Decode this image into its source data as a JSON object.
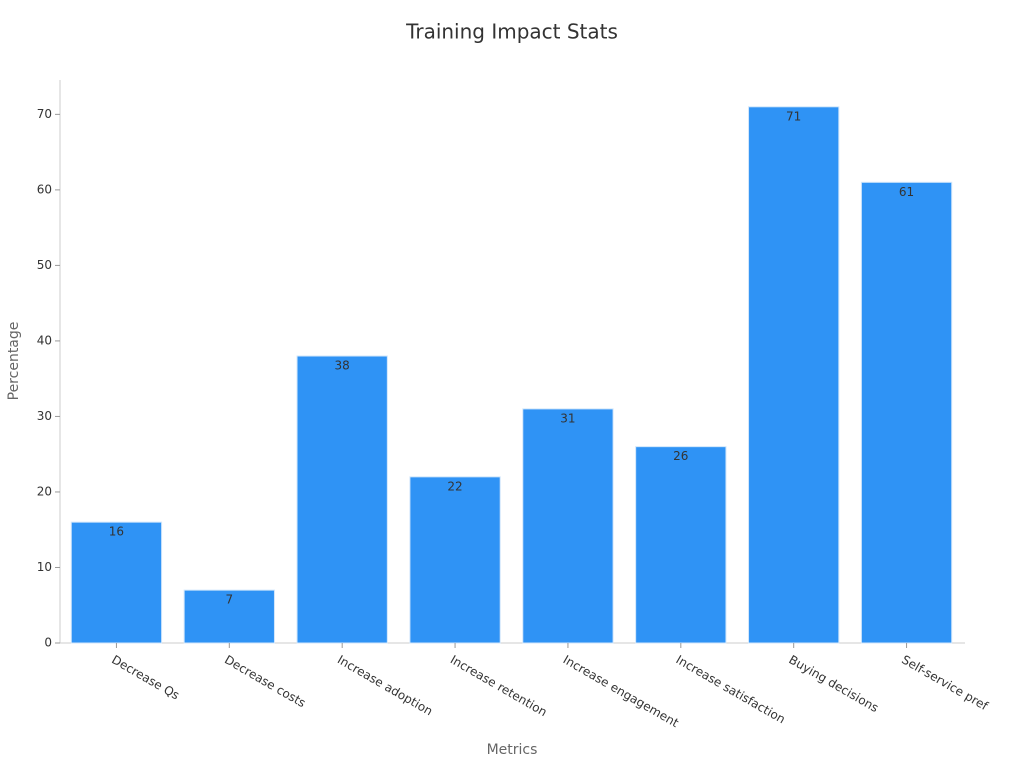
{
  "chart_data": {
    "type": "bar",
    "title": "Training Impact Stats",
    "x_label": "Metrics",
    "y_label": "Percentage",
    "categories": [
      "Decrease Qs",
      "Decrease costs",
      "Increase adoption",
      "Increase retention",
      "Increase engagement",
      "Increase satisfaction",
      "Buying decisions",
      "Self-service pref"
    ],
    "values": [
      16,
      7,
      38,
      22,
      31,
      26,
      71,
      61
    ],
    "color": "#2f93f5",
    "ylim": [
      0,
      74.55
    ],
    "yticks": [
      0,
      10,
      20,
      30,
      40,
      50,
      60,
      70
    ],
    "grid": false
  }
}
